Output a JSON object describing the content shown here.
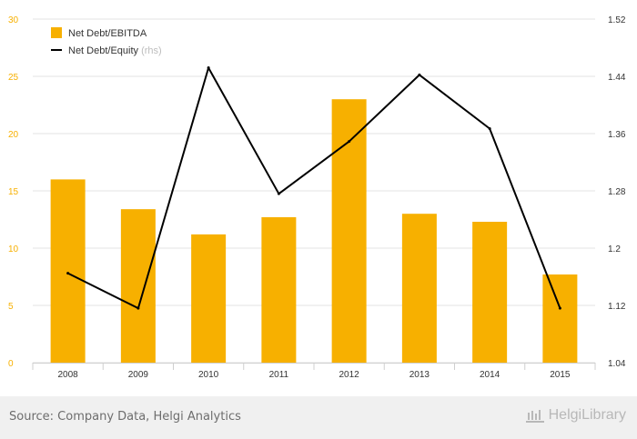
{
  "chart_data": {
    "type": "bar",
    "categories": [
      "2008",
      "2009",
      "2010",
      "2011",
      "2012",
      "2013",
      "2014",
      "2015"
    ],
    "series": [
      {
        "name": "Net Debt/EBITDA",
        "kind": "bar",
        "axis": "left",
        "color": "#f7b000",
        "values": [
          16.0,
          13.4,
          11.2,
          12.7,
          23.0,
          13.0,
          12.3,
          7.7
        ]
      },
      {
        "name": "Net Debt/Equity",
        "name_suffix": "(rhs)",
        "kind": "line",
        "axis": "right",
        "color": "#000000",
        "values": [
          1.165,
          1.116,
          1.452,
          1.276,
          1.349,
          1.442,
          1.367,
          1.116
        ]
      }
    ],
    "y_left": {
      "min": 0,
      "max": 30,
      "ticks": [
        "0",
        "5",
        "10",
        "15",
        "20",
        "25",
        "30"
      ],
      "tick_color": "#f7b000"
    },
    "y_right": {
      "min": 1.04,
      "max": 1.52,
      "ticks": [
        "1.04",
        "1.12",
        "1.2",
        "1.28",
        "1.36",
        "1.44",
        "1.52"
      ]
    },
    "grid": true,
    "legend_position": "top-left"
  },
  "footer": {
    "source": "Source: Company Data, Helgi Analytics",
    "brand": "HelgiLibrary"
  }
}
